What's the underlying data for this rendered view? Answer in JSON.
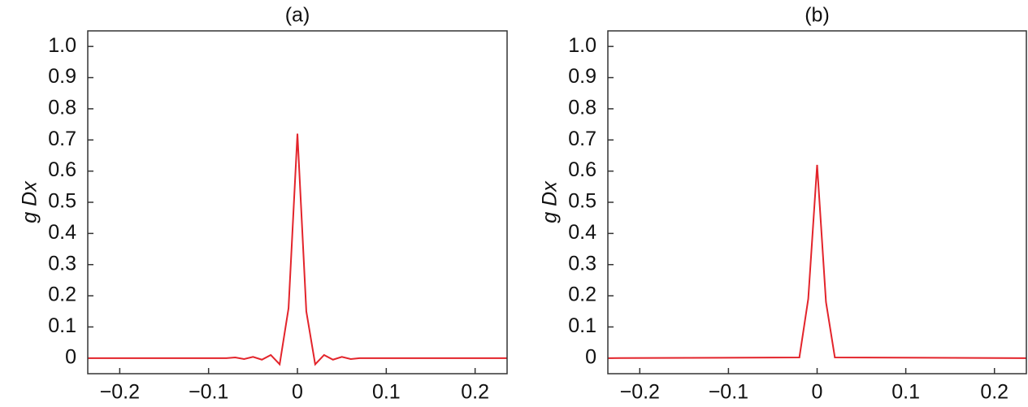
{
  "chart_data": [
    {
      "type": "line",
      "title": "(a)",
      "ylabel": "g Dx",
      "x": [
        -0.236,
        -0.08,
        -0.07,
        -0.06,
        -0.05,
        -0.04,
        -0.03,
        -0.02,
        -0.01,
        0,
        0.01,
        0.02,
        0.03,
        0.04,
        0.05,
        0.06,
        0.07,
        0.236
      ],
      "series": [
        {
          "color": "#e3242b",
          "values": [
            0,
            0,
            0.002,
            -0.003,
            0.004,
            -0.005,
            0.01,
            -0.02,
            0.16,
            0.72,
            0.15,
            -0.02,
            0.01,
            -0.005,
            0.004,
            -0.003,
            0,
            0
          ]
        }
      ],
      "xlim": [
        -0.236,
        0.236
      ],
      "ylim": [
        -0.05,
        1.05
      ],
      "xticks": [
        {
          "value": -0.2,
          "label": "−0.2"
        },
        {
          "value": -0.1,
          "label": "−0.1"
        },
        0,
        0.1,
        0.2
      ],
      "yticks": [
        0,
        0.1,
        0.2,
        0.3,
        0.4,
        0.5,
        0.6,
        0.7,
        0.8,
        0.9,
        {
          "value": 1,
          "label": "1.0"
        }
      ]
    },
    {
      "type": "line",
      "title": "(b)",
      "ylabel": "g Dx",
      "x": [
        -0.236,
        -0.02,
        -0.01,
        0,
        0.01,
        0.02,
        0.236
      ],
      "series": [
        {
          "color": "#e3242b",
          "values": [
            0,
            0.002,
            0.19,
            0.62,
            0.18,
            0.002,
            0
          ]
        }
      ],
      "xlim": [
        -0.236,
        0.236
      ],
      "ylim": [
        -0.05,
        1.05
      ],
      "xticks": [
        {
          "value": -0.2,
          "label": "−0.2"
        },
        {
          "value": -0.1,
          "label": "−0.1"
        },
        0,
        0.1,
        0.2
      ],
      "yticks": [
        0,
        0.1,
        0.2,
        0.3,
        0.4,
        0.5,
        0.6,
        0.7,
        0.8,
        0.9,
        {
          "value": 1,
          "label": "1.0"
        }
      ]
    }
  ]
}
